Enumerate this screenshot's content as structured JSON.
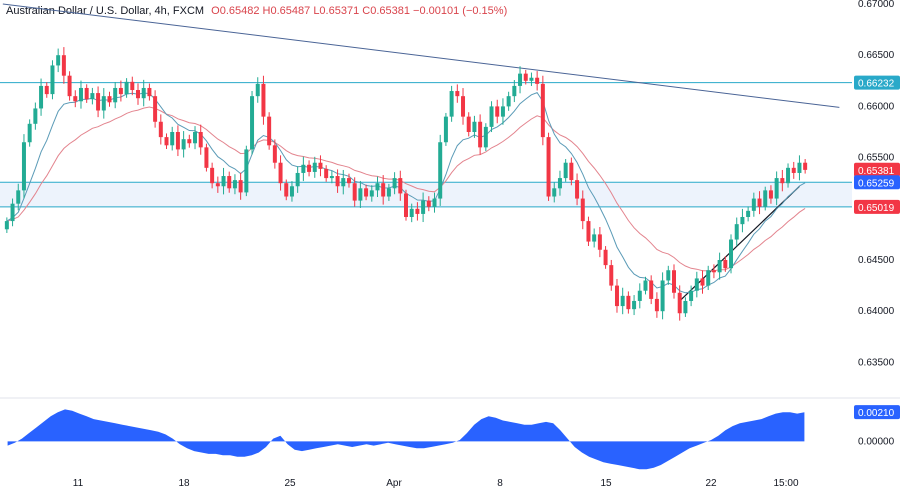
{
  "header": {
    "symbol": "Australian Dollar / U.S. Dollar, 4h, FXCM",
    "open": "O0.65482",
    "high": "H0.65487",
    "low": "L0.65371",
    "close": "C0.65381",
    "change": "−0.00101 (−0.15%)"
  },
  "colors": {
    "up": "#22ab94",
    "down": "#f23645",
    "ema_fast": "#5b9bb7",
    "ema_slow": "#e3848e",
    "trendline": "#4a6496",
    "level": "#29a9c9",
    "osc": "#2962ff"
  },
  "chart_data": [
    {
      "type": "candlestick",
      "title": "Australian Dollar / U.S. Dollar, 4h, FXCM",
      "ylim": [
        0.6325,
        0.67
      ],
      "y_ticks": [
        "0.67000",
        "0.66500",
        "0.66000",
        "0.65500",
        "0.65000",
        "0.64500",
        "0.64000",
        "0.63500"
      ],
      "x_ticks": [
        "11",
        "18",
        "25",
        "Apr",
        "8",
        "15",
        "22",
        "15:00"
      ],
      "price_labels": [
        {
          "text": "0.66232",
          "value": 0.66232,
          "color": "#29a9c9"
        },
        {
          "text": "0.65381",
          "value": 0.65381,
          "color": "#f23645"
        },
        {
          "text": "0.65259",
          "value": 0.65259,
          "color": "#2962ff"
        },
        {
          "text": "0.65019",
          "value": 0.65019,
          "color": "#f23645"
        }
      ],
      "horizontal_levels": [
        0.66232,
        0.65259,
        0.65019
      ],
      "support_zone": [
        0.65019,
        0.65259
      ],
      "descending_trendline": [
        [
          0,
          0.67
        ],
        [
          146,
          0.6599
        ]
      ],
      "ascending_trendline": [
        [
          118,
          0.641
        ],
        [
          139,
          0.6522
        ]
      ],
      "closes": [
        0.6488,
        0.6505,
        0.6518,
        0.6565,
        0.6583,
        0.6598,
        0.662,
        0.6612,
        0.664,
        0.665,
        0.663,
        0.661,
        0.6605,
        0.6618,
        0.6607,
        0.6613,
        0.6596,
        0.661,
        0.6604,
        0.6618,
        0.6612,
        0.6624,
        0.6616,
        0.6608,
        0.6618,
        0.661,
        0.6585,
        0.657,
        0.6562,
        0.6575,
        0.6558,
        0.6568,
        0.6564,
        0.6575,
        0.656,
        0.654,
        0.6525,
        0.6522,
        0.6532,
        0.652,
        0.6528,
        0.6516,
        0.6558,
        0.661,
        0.6622,
        0.659,
        0.6562,
        0.6545,
        0.6525,
        0.6512,
        0.6522,
        0.6535,
        0.6543,
        0.6536,
        0.6545,
        0.6539,
        0.653,
        0.6532,
        0.6522,
        0.653,
        0.6525,
        0.6508,
        0.652,
        0.6512,
        0.6518,
        0.6525,
        0.6512,
        0.652,
        0.653,
        0.6515,
        0.6492,
        0.65,
        0.6495,
        0.6508,
        0.6502,
        0.651,
        0.6565,
        0.659,
        0.6615,
        0.661,
        0.659,
        0.6575,
        0.6585,
        0.656,
        0.658,
        0.66,
        0.659,
        0.66,
        0.661,
        0.662,
        0.6632,
        0.6625,
        0.6628,
        0.6622,
        0.657,
        0.6512,
        0.652,
        0.653,
        0.6545,
        0.6528,
        0.651,
        0.6488,
        0.6468,
        0.6475,
        0.646,
        0.6445,
        0.6425,
        0.6405,
        0.6415,
        0.6402,
        0.641,
        0.642,
        0.643,
        0.6412,
        0.64,
        0.643,
        0.644,
        0.6418,
        0.6398,
        0.641,
        0.642,
        0.6432,
        0.6425,
        0.644,
        0.6438,
        0.645,
        0.6442,
        0.647,
        0.6485,
        0.6492,
        0.6498,
        0.651,
        0.6502,
        0.6518,
        0.651,
        0.653,
        0.6525,
        0.654,
        0.6535,
        0.6545,
        0.6538
      ],
      "indicators": [
        "EMA fast",
        "EMA slow"
      ]
    },
    {
      "type": "area",
      "ylim": [
        -0.0022,
        0.0024
      ],
      "y_ticks": [
        "0.00000"
      ],
      "last_value_label": "0.00210",
      "values": [
        -0.0003,
        -0.0001,
        0.0002,
        0.0006,
        0.001,
        0.0014,
        0.0018,
        0.0021,
        0.0023,
        0.0022,
        0.002,
        0.0018,
        0.0016,
        0.0015,
        0.0014,
        0.0013,
        0.0012,
        0.0011,
        0.001,
        0.0009,
        0.0008,
        0.0007,
        0.0005,
        0.0002,
        -0.0002,
        -0.0005,
        -0.0007,
        -0.0008,
        -0.0009,
        -0.0009,
        -0.001,
        -0.001,
        -0.0011,
        -0.0011,
        -0.001,
        -0.0008,
        -0.0004,
        0.0002,
        0.0004,
        -0.0002,
        -0.0006,
        -0.0007,
        -0.0006,
        -0.0005,
        -0.0004,
        -0.0003,
        -0.0002,
        -0.0003,
        -0.0004,
        -0.0003,
        -0.0002,
        -0.0003,
        -0.0002,
        -0.0001,
        -0.0002,
        -0.0003,
        -0.0004,
        -0.0005,
        -0.0005,
        -0.0004,
        -0.0003,
        -0.0002,
        -0.0001,
        0.0001,
        0.0006,
        0.0012,
        0.0016,
        0.0018,
        0.0017,
        0.0015,
        0.0014,
        0.0013,
        0.0012,
        0.0012,
        0.0013,
        0.0014,
        0.0013,
        0.0008,
        0.0002,
        -0.0004,
        -0.0008,
        -0.0011,
        -0.0013,
        -0.0015,
        -0.0016,
        -0.0017,
        -0.0018,
        -0.0019,
        -0.002,
        -0.002,
        -0.0019,
        -0.0017,
        -0.0014,
        -0.0011,
        -0.0008,
        -0.0005,
        -0.0003,
        -0.0001,
        0.0001,
        0.0004,
        0.0008,
        0.0011,
        0.0013,
        0.0014,
        0.0015,
        0.0016,
        0.0018,
        0.002,
        0.0021,
        0.0021,
        0.002,
        0.0021
      ]
    }
  ]
}
